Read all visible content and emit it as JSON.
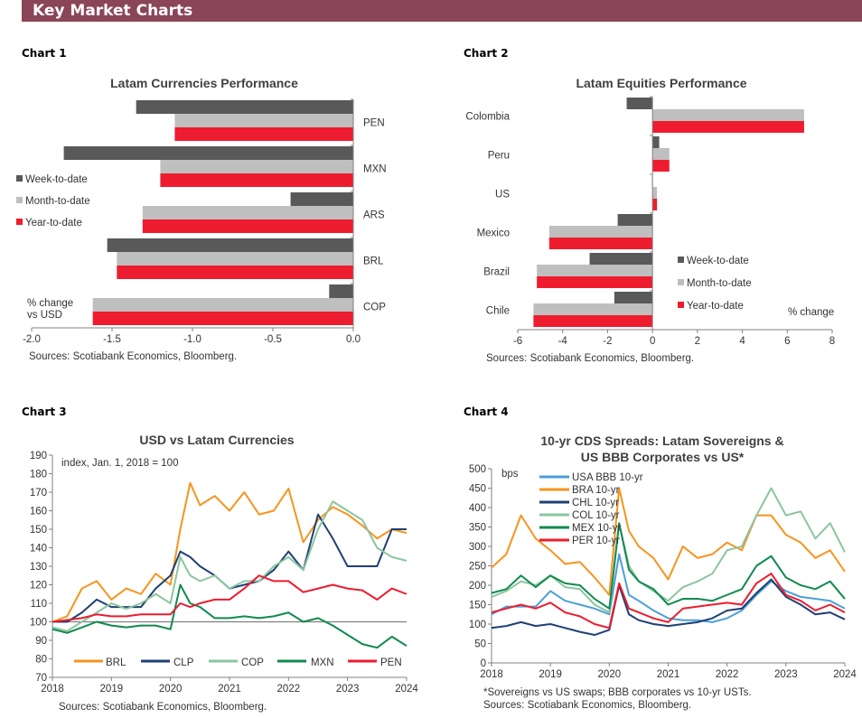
{
  "header": {
    "title": "Key Market Charts"
  },
  "colors": {
    "header": "#8b4558",
    "wtd": "#595959",
    "mtd": "#bfbfbf",
    "ytd": "#ed1c2e",
    "BRL": "#f7941d",
    "CLP": "#1f3f73",
    "COP": "#8cc5a0",
    "MXN": "#118a4f",
    "PEN": "#ed1c2e",
    "USA": "#4a9fd8",
    "BRA": "#f7941d",
    "CHL": "#1f3f73",
    "COL": "#8cc5a0",
    "MEX": "#118a4f",
    "PER": "#ed1c2e"
  },
  "chart_labels": [
    "Chart 1",
    "Chart 2",
    "Chart 3",
    "Chart 4"
  ],
  "chart_data": [
    {
      "type": "bar",
      "orientation": "horizontal",
      "title": "Latam Currencies Performance",
      "categories": [
        "PEN",
        "MXN",
        "ARS",
        "BRL",
        "COP"
      ],
      "series": [
        {
          "name": "Week-to-date",
          "values": [
            -1.35,
            -1.8,
            -0.39,
            -1.53,
            -0.15
          ]
        },
        {
          "name": "Month-to-date",
          "values": [
            -1.11,
            -1.2,
            -1.31,
            -1.47,
            -1.62
          ]
        },
        {
          "name": "Year-to-date",
          "values": [
            -1.11,
            -1.2,
            -1.31,
            -1.47,
            -1.62
          ]
        }
      ],
      "xlim": [
        -2.0,
        0.0
      ],
      "xticks": [
        "-2.0",
        "-1.5",
        "-1.0",
        "-0.5",
        "0.0"
      ],
      "annotation_lines": [
        "% change",
        "vs USD"
      ],
      "legend": "left",
      "source": "Sources: Scotiabank Economics, Bloomberg."
    },
    {
      "type": "bar",
      "orientation": "horizontal",
      "title": "Latam Equities Performance",
      "categories": [
        "Colombia",
        "Peru",
        "US",
        "Mexico",
        "Brazil",
        "Chile"
      ],
      "series": [
        {
          "name": "Week-to-date",
          "values": [
            -1.15,
            0.3,
            -0.02,
            -1.55,
            -2.8,
            -1.7
          ]
        },
        {
          "name": "Month-to-date",
          "values": [
            6.75,
            0.75,
            0.2,
            -4.6,
            -5.15,
            -5.3
          ]
        },
        {
          "name": "Year-to-date",
          "values": [
            6.75,
            0.75,
            0.2,
            -4.6,
            -5.15,
            -5.3
          ]
        }
      ],
      "xlim": [
        -6,
        8
      ],
      "xticks": [
        "-6",
        "-4",
        "-2",
        "0",
        "2",
        "4",
        "6",
        "8"
      ],
      "annotation": "% change",
      "legend": "bottom-right",
      "source": "Sources: Scotiabank Economics, Bloomberg."
    },
    {
      "type": "line",
      "title": "USD vs Latam Currencies",
      "annotation": "index, Jan. 1, 2018 = 100",
      "ylim": [
        70,
        190
      ],
      "yticks": [
        "70",
        "80",
        "90",
        "100",
        "110",
        "120",
        "130",
        "140",
        "150",
        "160",
        "170",
        "180",
        "190"
      ],
      "xticks": [
        "2018",
        "2019",
        "2020",
        "2021",
        "2022",
        "2023",
        "2024"
      ],
      "reference_line": 100,
      "legend": "bottom",
      "x": [
        "2018-01",
        "2018-04",
        "2018-07",
        "2018-10",
        "2019-01",
        "2019-04",
        "2019-07",
        "2019-10",
        "2020-01",
        "2020-03",
        "2020-05",
        "2020-07",
        "2020-10",
        "2021-01",
        "2021-04",
        "2021-07",
        "2021-10",
        "2022-01",
        "2022-04",
        "2022-07",
        "2022-10",
        "2023-01",
        "2023-04",
        "2023-07",
        "2023-10",
        "2024-01"
      ],
      "series": [
        {
          "name": "BRL",
          "values": [
            100,
            103,
            118,
            122,
            112,
            118,
            115,
            126,
            120,
            150,
            175,
            163,
            168,
            160,
            170,
            158,
            160,
            172,
            143,
            155,
            162,
            158,
            152,
            145,
            150,
            148
          ]
        },
        {
          "name": "CLP",
          "values": [
            100,
            100,
            105,
            112,
            108,
            108,
            108,
            118,
            125,
            138,
            135,
            130,
            125,
            118,
            120,
            122,
            128,
            138,
            128,
            158,
            145,
            130,
            130,
            130,
            150,
            150
          ]
        },
        {
          "name": "COP",
          "values": [
            97,
            95,
            100,
            105,
            110,
            107,
            110,
            115,
            110,
            135,
            125,
            122,
            125,
            118,
            122,
            122,
            130,
            135,
            128,
            150,
            165,
            160,
            155,
            140,
            135,
            133
          ]
        },
        {
          "name": "MXN",
          "values": [
            96,
            94,
            97,
            100,
            98,
            97,
            98,
            98,
            96,
            120,
            110,
            108,
            102,
            102,
            103,
            102,
            103,
            105,
            100,
            102,
            98,
            93,
            88,
            86,
            92,
            87
          ]
        },
        {
          "name": "PEN",
          "values": [
            100,
            101,
            102,
            104,
            103,
            103,
            104,
            104,
            104,
            110,
            108,
            110,
            112,
            112,
            118,
            125,
            122,
            122,
            116,
            118,
            120,
            118,
            117,
            112,
            118,
            115
          ]
        }
      ],
      "source": "Sources: Scotiabank Economics, Bloomberg."
    },
    {
      "type": "line",
      "title_lines": [
        "10-yr CDS Spreads: Latam Sovereigns &",
        "US BBB Corporates vs US*"
      ],
      "ylabel": "bps",
      "ylim": [
        0,
        500
      ],
      "yticks": [
        "0",
        "50",
        "100",
        "150",
        "200",
        "250",
        "300",
        "350",
        "400",
        "450",
        "500"
      ],
      "xticks": [
        "2018",
        "2019",
        "2020",
        "2021",
        "2022",
        "2023",
        "2024"
      ],
      "legend": "top-left",
      "x": [
        "2018-01",
        "2018-04",
        "2018-07",
        "2018-10",
        "2019-01",
        "2019-04",
        "2019-07",
        "2019-10",
        "2020-01",
        "2020-03",
        "2020-05",
        "2020-07",
        "2020-10",
        "2021-01",
        "2021-04",
        "2021-07",
        "2021-10",
        "2022-01",
        "2022-04",
        "2022-07",
        "2022-10",
        "2023-01",
        "2023-04",
        "2023-07",
        "2023-10",
        "2024-01"
      ],
      "series": [
        {
          "name": "USA BBB 10-yr",
          "key": "USA",
          "values": [
            125,
            145,
            145,
            145,
            185,
            160,
            150,
            140,
            125,
            280,
            175,
            160,
            135,
            115,
            110,
            110,
            105,
            115,
            135,
            175,
            210,
            185,
            170,
            165,
            160,
            140
          ]
        },
        {
          "name": "BRA 10-yr",
          "key": "BRA",
          "values": [
            245,
            280,
            380,
            320,
            290,
            255,
            260,
            220,
            175,
            450,
            340,
            300,
            270,
            215,
            300,
            270,
            280,
            310,
            290,
            380,
            380,
            330,
            310,
            270,
            290,
            235
          ]
        },
        {
          "name": "CHL 10-yr",
          "key": "CHL",
          "values": [
            90,
            95,
            105,
            95,
            100,
            90,
            80,
            72,
            85,
            200,
            125,
            110,
            100,
            95,
            100,
            105,
            115,
            135,
            140,
            180,
            215,
            170,
            150,
            125,
            130,
            112
          ]
        },
        {
          "name": "COL 10-yr",
          "key": "COL",
          "values": [
            170,
            185,
            210,
            200,
            225,
            195,
            190,
            150,
            130,
            360,
            250,
            210,
            185,
            160,
            195,
            210,
            230,
            290,
            300,
            380,
            450,
            380,
            390,
            320,
            360,
            285
          ]
        },
        {
          "name": "MEX 10-yr",
          "key": "MEX",
          "values": [
            180,
            190,
            225,
            195,
            225,
            205,
            200,
            165,
            140,
            360,
            240,
            210,
            190,
            150,
            165,
            165,
            160,
            175,
            190,
            250,
            275,
            220,
            200,
            190,
            210,
            165
          ]
        },
        {
          "name": "PER 10-yr",
          "key": "PER",
          "values": [
            130,
            140,
            150,
            140,
            155,
            130,
            120,
            100,
            90,
            205,
            140,
            130,
            115,
            105,
            140,
            145,
            150,
            155,
            150,
            205,
            230,
            175,
            160,
            135,
            150,
            130
          ]
        }
      ],
      "footnote": "*Sovereigns vs US swaps; BBB corporates vs 10-yr USTs.",
      "source": "Sources: Scotiabank Economics, Bloomberg."
    }
  ]
}
